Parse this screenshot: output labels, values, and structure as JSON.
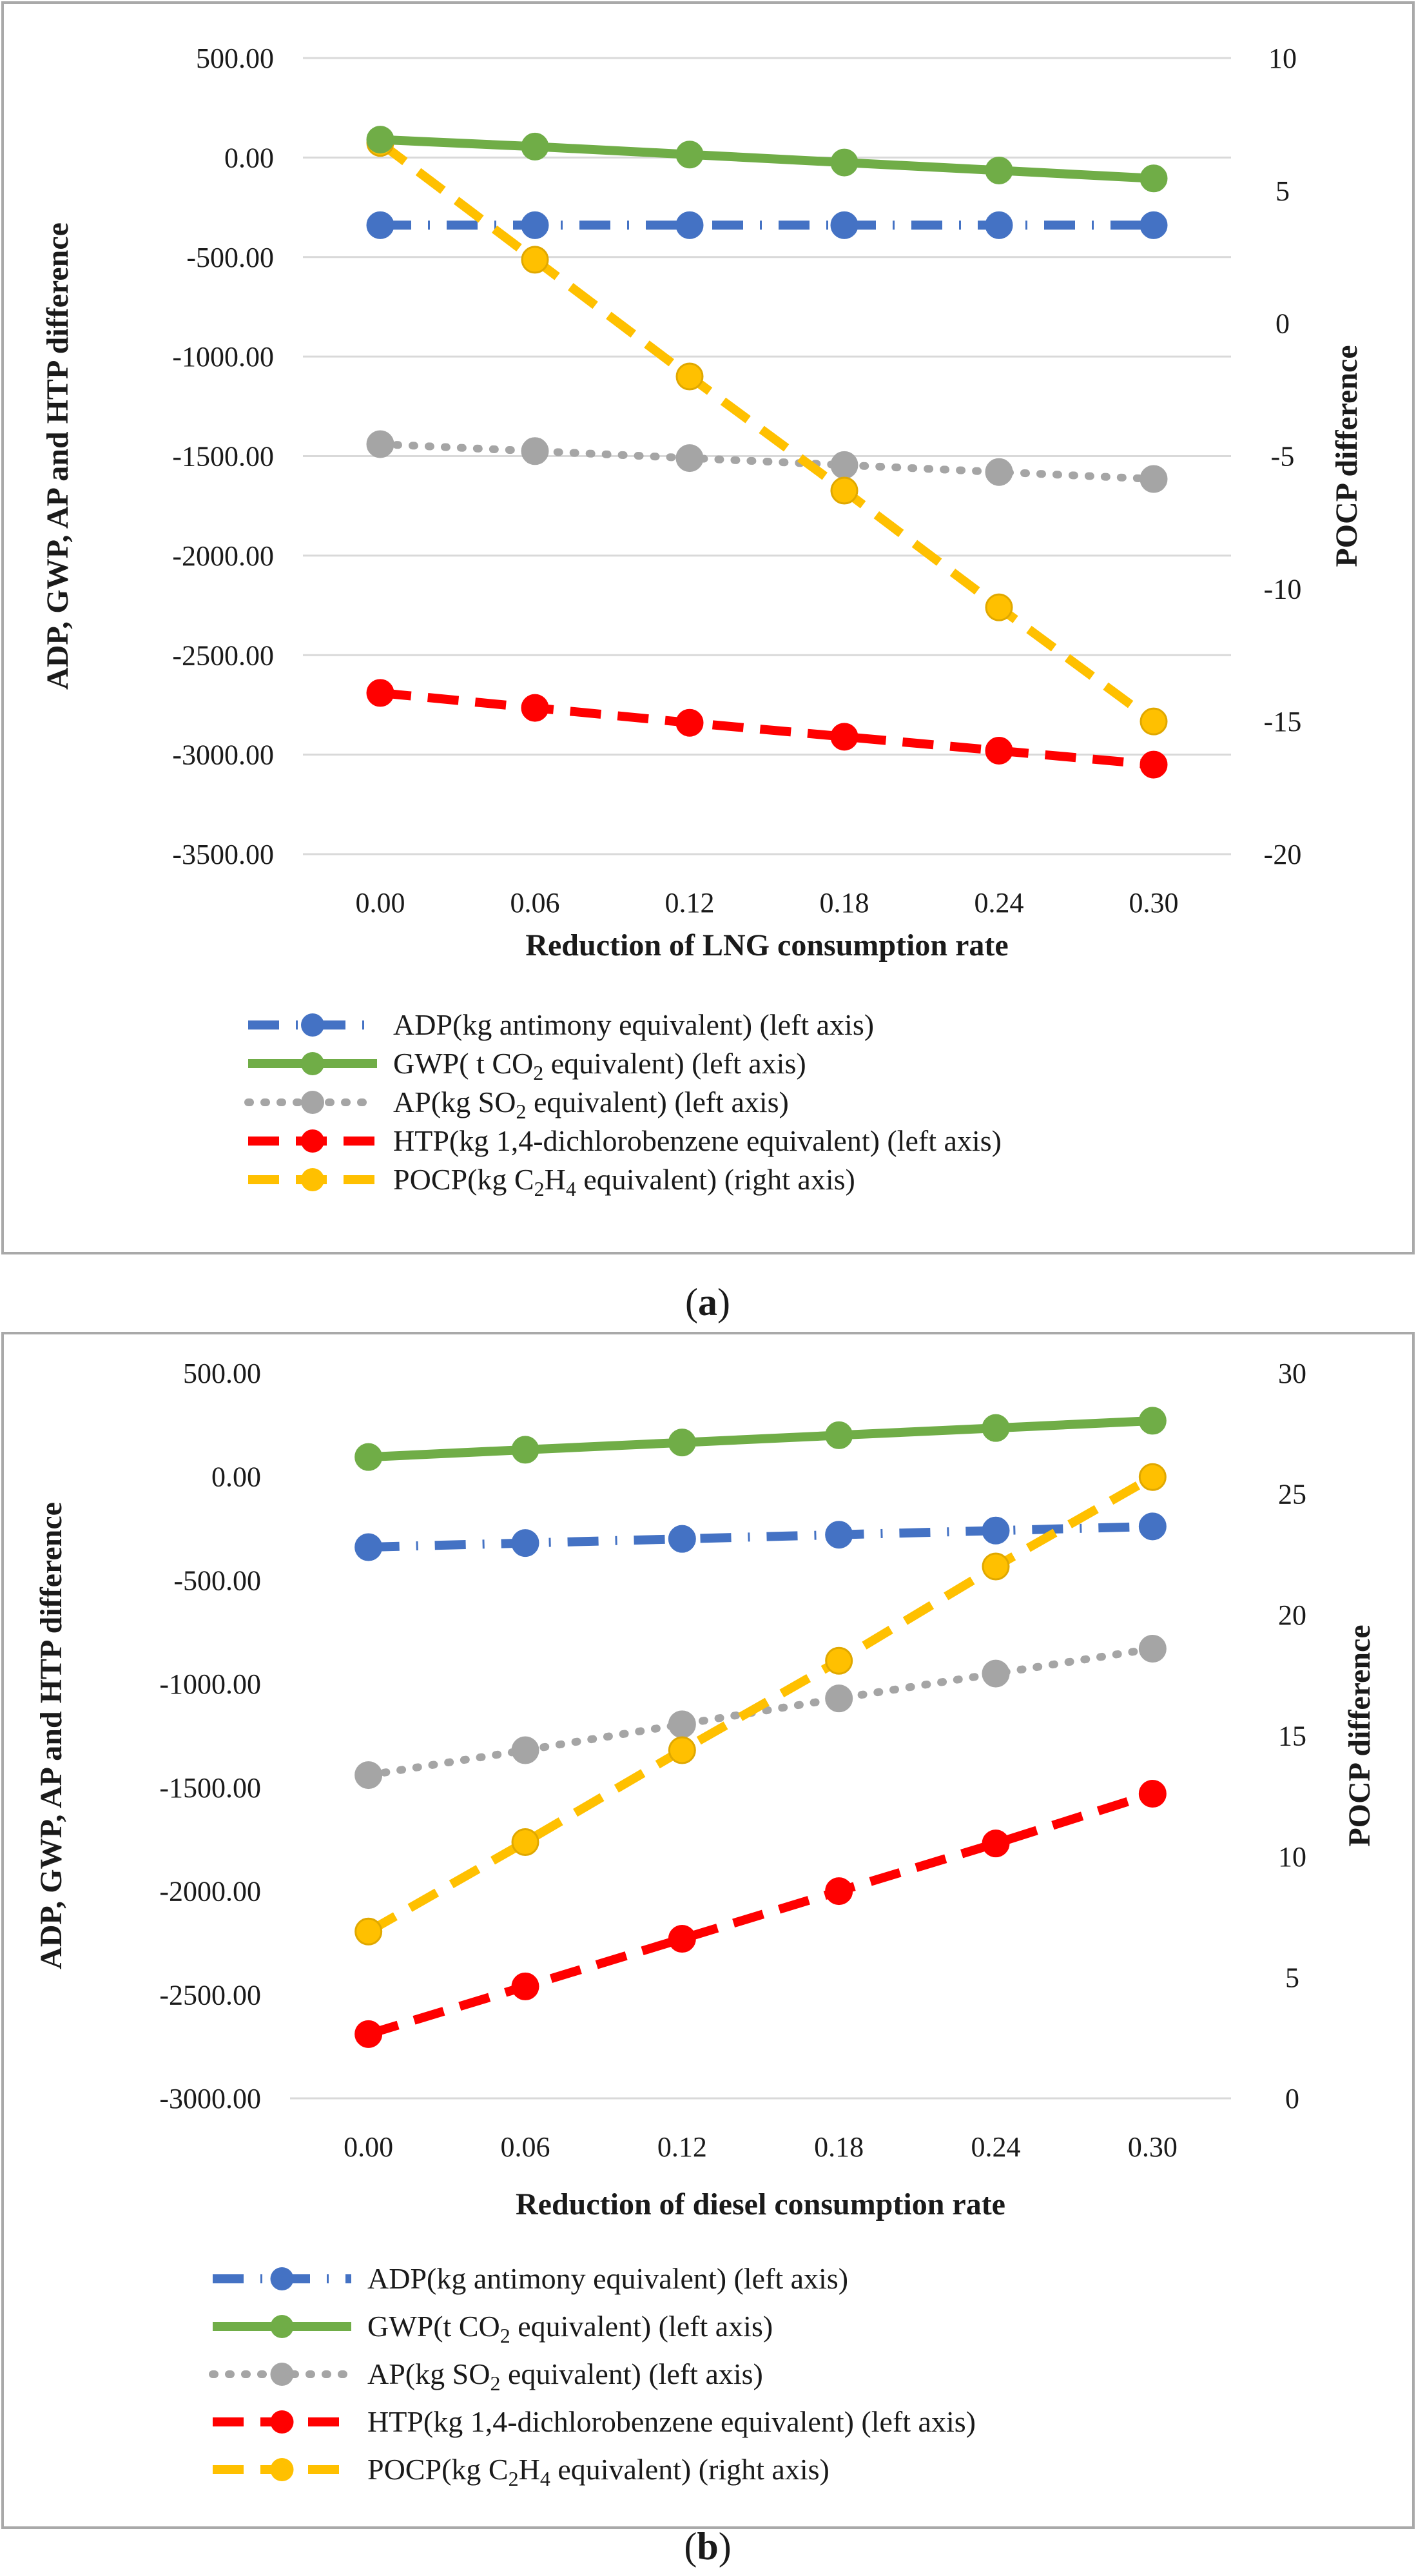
{
  "chart_data": [
    {
      "panel": "a",
      "type": "line",
      "caption_open": "(",
      "caption_letter": "a",
      "caption_close": ")",
      "xlabel": "Reduction of LNG consumption rate",
      "ylabel_left": "ADP, GWP, AP and HTP difference",
      "ylabel_right": "POCP difference",
      "categories": [
        "0.00",
        "0.06",
        "0.12",
        "0.18",
        "0.24",
        "0.30"
      ],
      "ylim_left": [
        -3500,
        500
      ],
      "left_ticks": [
        500,
        0,
        -500,
        -1000,
        -1500,
        -2000,
        -2500,
        -3000,
        -3500
      ],
      "left_tick_labels": [
        "500.00",
        "0.00",
        "-500.00",
        "-1000.00",
        "-1500.00",
        "-2000.00",
        "-2500.00",
        "-3000.00",
        "-3500.00"
      ],
      "ylim_right": [
        -20,
        10
      ],
      "right_ticks": [
        10,
        5,
        0,
        -5,
        -10,
        -15,
        -20
      ],
      "right_tick_labels": [
        "10",
        "5",
        "0",
        "-5",
        "-10",
        "-15",
        "-20"
      ],
      "grid": "horizontal",
      "series": [
        {
          "key": "adp",
          "name": "ADP(kg antimony equivalent) (left axis)",
          "axis": "left",
          "color": "#4472c4",
          "dash": "dash-dot",
          "values": [
            -340,
            -340,
            -340,
            -340,
            -340,
            -340
          ]
        },
        {
          "key": "gwp",
          "name_html": "GWP( t CO<tspan font-size='32' dy='10'>2</tspan><tspan dy='-10'> equivalent) (left axis)</tspan>",
          "name": "GWP( t CO2 equivalent) (left axis)",
          "axis": "left",
          "color": "#70ad47",
          "dash": "solid",
          "values": [
            90,
            55,
            15,
            -25,
            -65,
            -105
          ]
        },
        {
          "key": "ap",
          "name": "AP(kg SO2 equivalent) (left axis)",
          "axis": "left",
          "color": "#a5a5a5",
          "dash": "dot",
          "values": [
            -1440,
            -1475,
            -1510,
            -1545,
            -1580,
            -1615
          ]
        },
        {
          "key": "htp",
          "name": "HTP(kg 1,4-dichlorobenzene equivalent) (left axis)",
          "axis": "left",
          "color": "#ff0000",
          "dash": "dash",
          "values": [
            -2690,
            -2765,
            -2840,
            -2910,
            -2980,
            -3050
          ]
        },
        {
          "key": "pocp",
          "name": "POCP(kg C2H4 equivalent) (right axis)",
          "axis": "right",
          "color": "#ffc000",
          "dash": "dash",
          "values": [
            6.8,
            2.4,
            -2.0,
            -6.3,
            -10.7,
            -15.0
          ]
        }
      ]
    },
    {
      "panel": "b",
      "type": "line",
      "caption_open": "(",
      "caption_letter": "b",
      "caption_close": ")",
      "xlabel": "Reduction of diesel consumption rate",
      "ylabel_left": "ADP, GWP, AP and HTP difference",
      "ylabel_right": "POCP difference",
      "categories": [
        "0.00",
        "0.06",
        "0.12",
        "0.18",
        "0.24",
        "0.30"
      ],
      "ylim_left": [
        -3000,
        500
      ],
      "left_ticks": [
        500,
        0,
        -500,
        -1000,
        -1500,
        -2000,
        -2500,
        -3000
      ],
      "left_tick_labels": [
        "500.00",
        "0.00",
        "-500.00",
        "-1000.00",
        "-1500.00",
        "-2000.00",
        "-2500.00",
        "-3000.00"
      ],
      "ylim_right": [
        0,
        30
      ],
      "right_ticks": [
        30,
        25,
        20,
        15,
        10,
        5,
        0
      ],
      "right_tick_labels": [
        "30",
        "25",
        "20",
        "15",
        "10",
        "5",
        "0"
      ],
      "grid": "none",
      "series": [
        {
          "key": "adp",
          "name": "ADP(kg antimony equivalent) (left axis)",
          "axis": "left",
          "color": "#4472c4",
          "dash": "dash-dot",
          "values": [
            -340,
            -320,
            -300,
            -280,
            -260,
            -240
          ]
        },
        {
          "key": "gwp",
          "name": "GWP(t CO2 equivalent) (left axis)",
          "axis": "left",
          "color": "#70ad47",
          "dash": "solid",
          "values": [
            95,
            130,
            165,
            200,
            235,
            270
          ]
        },
        {
          "key": "ap",
          "name": "AP(kg SO2 equivalent) (left axis)",
          "axis": "left",
          "color": "#a5a5a5",
          "dash": "dot",
          "values": [
            -1440,
            -1320,
            -1195,
            -1070,
            -950,
            -830
          ]
        },
        {
          "key": "htp",
          "name": "HTP(kg 1,4-dichlorobenzene equivalent) (left axis)",
          "axis": "left",
          "color": "#ff0000",
          "dash": "dash",
          "values": [
            -2690,
            -2460,
            -2230,
            -2000,
            -1770,
            -1530
          ]
        },
        {
          "key": "pocp",
          "name": "POCP(kg C2H4 equivalent) (right axis)",
          "axis": "right",
          "color": "#ffc000",
          "dash": "dash",
          "values": [
            6.9,
            10.6,
            14.4,
            18.1,
            22.0,
            25.7
          ]
        }
      ]
    }
  ],
  "legend_labels": {
    "a": [
      [
        "ADP(kg antimony equivalent) (left axis)"
      ],
      [
        "GWP( t CO",
        "2",
        " equivalent) (left axis)"
      ],
      [
        "AP(kg SO",
        "2",
        " equivalent) (left axis)"
      ],
      [
        "HTP(kg 1,4-dichlorobenzene equivalent) (left axis)"
      ],
      [
        "POCP(kg C",
        "2",
        "H",
        "4",
        " equivalent) (right axis)"
      ]
    ],
    "b": [
      [
        "ADP(kg antimony equivalent) (left axis)"
      ],
      [
        "GWP(t CO",
        "2",
        " equivalent) (left axis)"
      ],
      [
        "AP(kg SO",
        "2",
        " equivalent) (left axis)"
      ],
      [
        "HTP(kg 1,4-dichlorobenzene equivalent) (left axis)"
      ],
      [
        "POCP(kg C",
        "2",
        "H",
        "4",
        " equivalent) (right axis)"
      ]
    ]
  }
}
